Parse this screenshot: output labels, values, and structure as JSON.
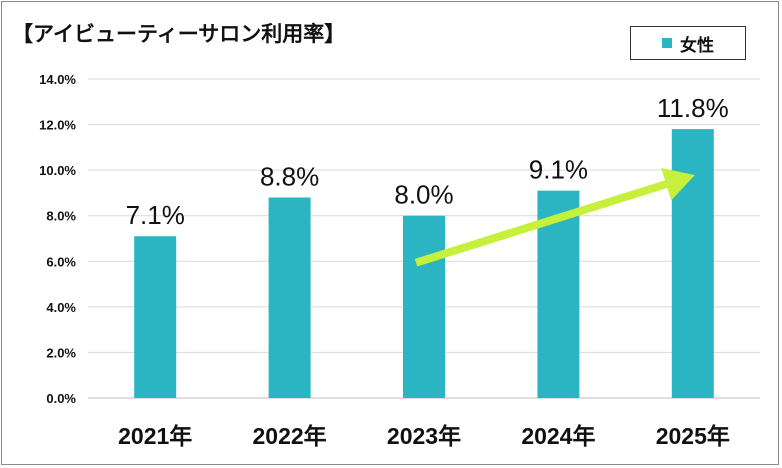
{
  "chart_data": {
    "type": "bar",
    "title": "【アイビューティーサロン利用率】",
    "categories": [
      "2021年",
      "2022年",
      "2023年",
      "2024年",
      "2025年"
    ],
    "series": [
      {
        "name": "女性",
        "values": [
          7.1,
          8.8,
          8.0,
          9.1,
          11.8
        ],
        "color": "#2bb5c3"
      }
    ],
    "data_labels": [
      "7.1%",
      "8.8%",
      "8.0%",
      "9.1%",
      "11.8%"
    ],
    "yticks": [
      "0.0%",
      "2.0%",
      "4.0%",
      "6.0%",
      "8.0%",
      "10.0%",
      "12.0%",
      "14.0%"
    ],
    "ylim": [
      0,
      14
    ],
    "grid": true,
    "legend_position": "top-right",
    "trend_arrow": {
      "color": "#c6f03c",
      "from_category": "2023年",
      "to_category": "2025年"
    },
    "colors": {
      "grid": "#d9d9d9",
      "axis": "#bfbfbf",
      "frame": "#8c8c8c"
    }
  }
}
